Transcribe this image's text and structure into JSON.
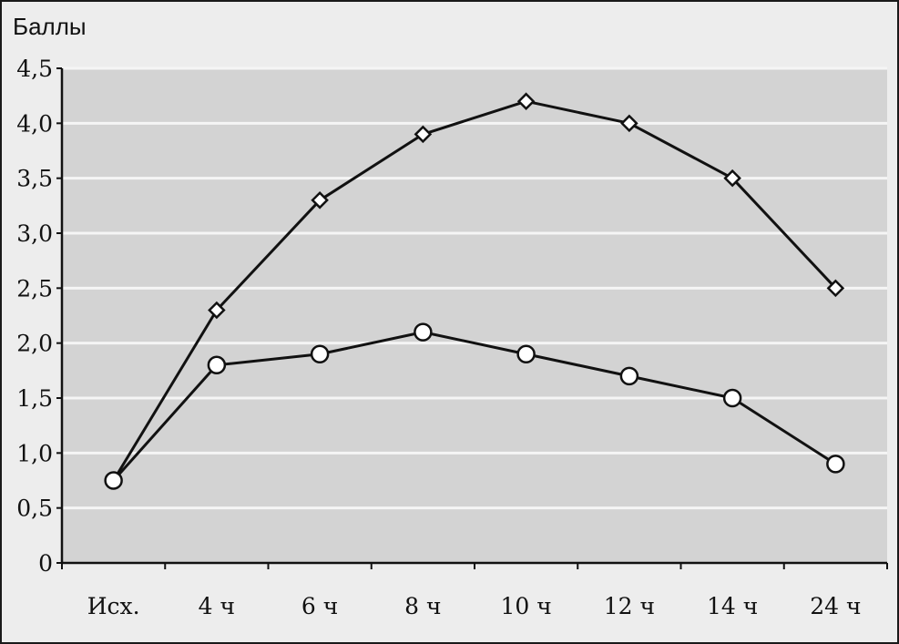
{
  "chart_data": {
    "type": "line",
    "title": "",
    "ylabel": "Баллы",
    "xlabel": "",
    "categories": [
      "Исх.",
      "4 ч",
      "6 ч",
      "8 ч",
      "10 ч",
      "12 ч",
      "14 ч",
      "24 ч"
    ],
    "ylim": [
      0,
      4.5
    ],
    "yticks": [
      0,
      0.5,
      1.0,
      1.5,
      2.0,
      2.5,
      3.0,
      3.5,
      4.0,
      4.5
    ],
    "ytick_labels": [
      "0",
      "0,5",
      "1,0",
      "1,5",
      "2,0",
      "2,5",
      "3,0",
      "3,5",
      "4,0",
      "4,5"
    ],
    "grid": true,
    "legend": "none",
    "series": [
      {
        "marker": "diamond",
        "values": [
          0.75,
          2.3,
          3.3,
          3.9,
          4.2,
          4.0,
          3.5,
          2.5
        ]
      },
      {
        "marker": "circle",
        "values": [
          0.75,
          1.8,
          1.9,
          2.1,
          1.9,
          1.7,
          1.5,
          0.9
        ]
      }
    ],
    "colors": {
      "plot_bg": "#d3d3d3",
      "grid": "#f5f5f5",
      "line": "#111111",
      "marker_fill": "#ffffff"
    }
  }
}
